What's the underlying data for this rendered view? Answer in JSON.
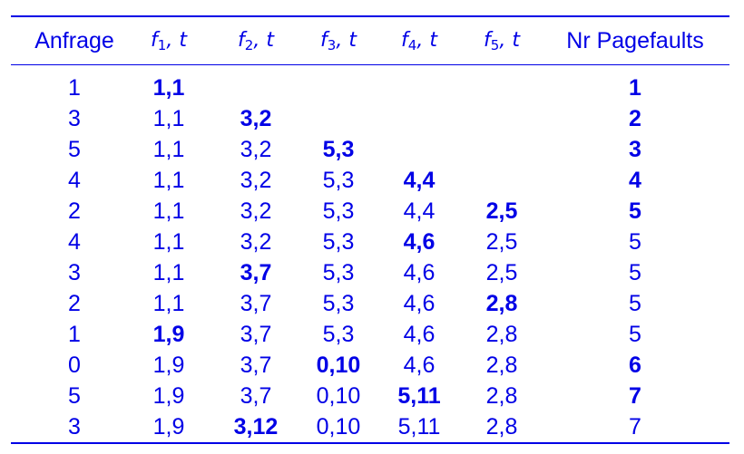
{
  "table": {
    "headers": [
      {
        "text": "Anfrage"
      },
      {
        "sym": "f",
        "sub": "1",
        "rest": ", t"
      },
      {
        "sym": "f",
        "sub": "2",
        "rest": ", t"
      },
      {
        "sym": "f",
        "sub": "3",
        "rest": ", t"
      },
      {
        "sym": "f",
        "sub": "4",
        "rest": ", t"
      },
      {
        "sym": "f",
        "sub": "5",
        "rest": ", t"
      },
      {
        "text": "Nr Pagefaults"
      }
    ],
    "rows": [
      {
        "cells": [
          "1",
          "1,1",
          "",
          "",
          "",
          "",
          "1"
        ],
        "bold": [
          false,
          true,
          false,
          false,
          false,
          false,
          true
        ]
      },
      {
        "cells": [
          "3",
          "1,1",
          "3,2",
          "",
          "",
          "",
          "2"
        ],
        "bold": [
          false,
          false,
          true,
          false,
          false,
          false,
          true
        ]
      },
      {
        "cells": [
          "5",
          "1,1",
          "3,2",
          "5,3",
          "",
          "",
          "3"
        ],
        "bold": [
          false,
          false,
          false,
          true,
          false,
          false,
          true
        ]
      },
      {
        "cells": [
          "4",
          "1,1",
          "3,2",
          "5,3",
          "4,4",
          "",
          "4"
        ],
        "bold": [
          false,
          false,
          false,
          false,
          true,
          false,
          true
        ]
      },
      {
        "cells": [
          "2",
          "1,1",
          "3,2",
          "5,3",
          "4,4",
          "2,5",
          "5"
        ],
        "bold": [
          false,
          false,
          false,
          false,
          false,
          true,
          true
        ]
      },
      {
        "cells": [
          "4",
          "1,1",
          "3,2",
          "5,3",
          "4,6",
          "2,5",
          "5"
        ],
        "bold": [
          false,
          false,
          false,
          false,
          true,
          false,
          false
        ]
      },
      {
        "cells": [
          "3",
          "1,1",
          "3,7",
          "5,3",
          "4,6",
          "2,5",
          "5"
        ],
        "bold": [
          false,
          false,
          true,
          false,
          false,
          false,
          false
        ]
      },
      {
        "cells": [
          "2",
          "1,1",
          "3,7",
          "5,3",
          "4,6",
          "2,8",
          "5"
        ],
        "bold": [
          false,
          false,
          false,
          false,
          false,
          true,
          false
        ]
      },
      {
        "cells": [
          "1",
          "1,9",
          "3,7",
          "5,3",
          "4,6",
          "2,8",
          "5"
        ],
        "bold": [
          false,
          true,
          false,
          false,
          false,
          false,
          false
        ]
      },
      {
        "cells": [
          "0",
          "1,9",
          "3,7",
          "0,10",
          "4,6",
          "2,8",
          "6"
        ],
        "bold": [
          false,
          false,
          false,
          true,
          false,
          false,
          true
        ]
      },
      {
        "cells": [
          "5",
          "1,9",
          "3,7",
          "0,10",
          "5,11",
          "2,8",
          "7"
        ],
        "bold": [
          false,
          false,
          false,
          false,
          true,
          false,
          true
        ]
      },
      {
        "cells": [
          "3",
          "1,9",
          "3,12",
          "0,10",
          "5,11",
          "2,8",
          "7"
        ],
        "bold": [
          false,
          false,
          true,
          false,
          false,
          false,
          false
        ]
      }
    ]
  }
}
